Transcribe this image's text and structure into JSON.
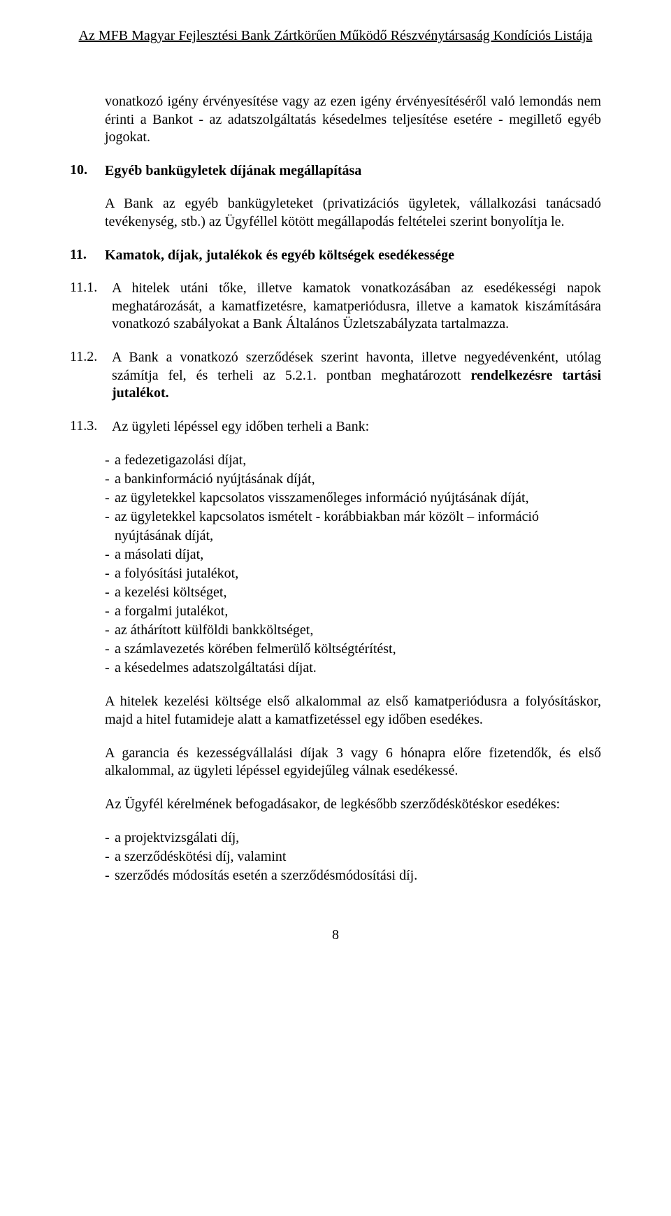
{
  "header": "Az MFB Magyar Fejlesztési Bank Zártkörűen Működő Részvénytársaság Kondíciós Listája",
  "para_intro": "vonatkozó igény érvényesítése vagy az ezen igény érvényesítéséről való lemondás nem érinti a Bankot - az adatszolgáltatás késedelmes teljesítése esetére - megillető egyéb jogokat.",
  "s10": {
    "num": "10.",
    "title": "Egyéb bankügyletek díjának megállapítása",
    "body": "A Bank az egyéb bankügyleteket (privatizációs ügyletek, vállalkozási tanácsadó tevékenység, stb.) az Ügyféllel kötött megállapodás feltételei szerint bonyolítja le."
  },
  "s11": {
    "num": "11.",
    "title": "Kamatok, díjak, jutalékok és egyéb költségek esedékessége"
  },
  "s11_1": {
    "num": "11.1.",
    "body": "A hitelek utáni tőke, illetve kamatok vonatkozásában az esedékességi napok meghatározását, a kamatfizetésre, kamatperiódusra, illetve a kamatok kiszámítására vonatkozó szabályokat a Bank Általános Üzletszabályzata tartalmazza."
  },
  "s11_2": {
    "num": "11.2.",
    "body_a": "A Bank a vonatkozó szerződések szerint havonta, illetve negyedévenként, utólag számítja fel, és terheli az 5.2.1. pontban meghatározott ",
    "body_b_bold": "rendelkezésre tartási jutalékot."
  },
  "s11_3": {
    "num": "11.3.",
    "intro": "Az ügyleti lépéssel egy időben terheli a Bank:",
    "bullets": [
      "a fedezetigazolási díjat,",
      "a bankinformáció nyújtásának díját,",
      "az ügyletekkel kapcsolatos visszamenőleges információ nyújtásának díját,",
      "az ügyletekkel kapcsolatos ismételt - korábbiakban már közölt – információ nyújtásának díját,",
      "a másolati díjat,",
      "a folyósítási jutalékot,",
      "a kezelési költséget,",
      "a forgalmi jutalékot,",
      "az áthárított külföldi bankköltséget,",
      "a számlavezetés körében felmerülő költségtérítést,",
      "a késedelmes adatszolgáltatási díjat."
    ],
    "para1": "A hitelek kezelési költsége első alkalommal az első kamatperiódusra a folyósításkor, majd a hitel futamideje alatt a kamatfizetéssel egy időben esedékes.",
    "para2": "A garancia és kezességvállalási díjak 3 vagy 6 hónapra előre fizetendők, és első alkalommal, az ügyleti lépéssel egyidejűleg válnak esedékessé.",
    "para3": "Az Ügyfél kérelmének befogadásakor, de legkésőbb szerződéskötéskor esedékes:",
    "bullets2": [
      "a projektvizsgálati díj,",
      "a szerződéskötési díj, valamint",
      "szerződés módosítás esetén a szerződésmódosítási díj."
    ]
  },
  "page_number": "8"
}
